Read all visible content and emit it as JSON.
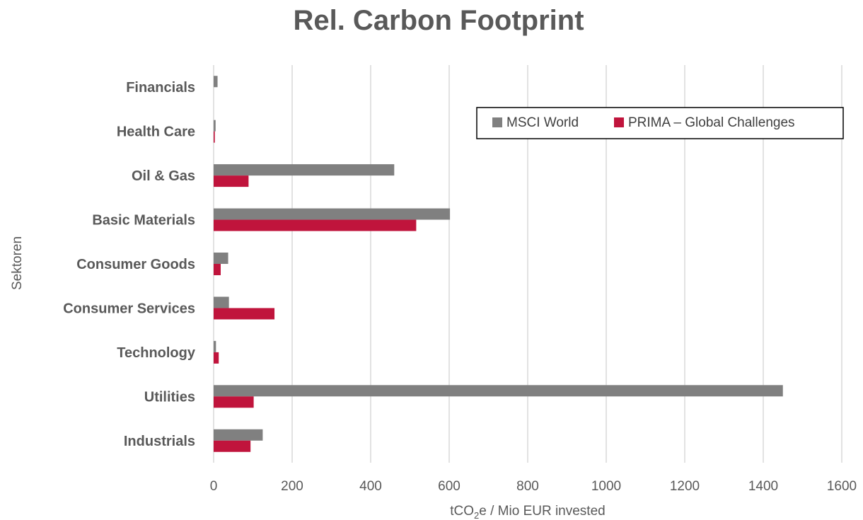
{
  "chart_data": {
    "type": "bar",
    "orientation": "horizontal",
    "title": "Rel. Carbon Footprint",
    "xlabel_parts": [
      "tCO",
      "2",
      "e / Mio EUR invested"
    ],
    "ylabel": "Sektoren",
    "xlim": [
      0,
      1600
    ],
    "xticks": [
      0,
      200,
      400,
      600,
      800,
      1000,
      1200,
      1400,
      1600
    ],
    "grid": true,
    "legend_position": "top-right",
    "categories": [
      "Financials",
      "Health Care",
      "Oil & Gas",
      "Basic Materials",
      "Consumer Goods",
      "Consumer Services",
      "Technology",
      "Utilities",
      "Industrials"
    ],
    "series": [
      {
        "name": "MSCI World",
        "color": "#808080",
        "values": [
          10,
          5,
          460,
          602,
          37,
          39,
          6,
          1450,
          125
        ]
      },
      {
        "name": "PRIMA – Global Challenges",
        "color": "#c0143c",
        "values": [
          0,
          3,
          89,
          516,
          18,
          155,
          13,
          102,
          94
        ]
      }
    ]
  }
}
